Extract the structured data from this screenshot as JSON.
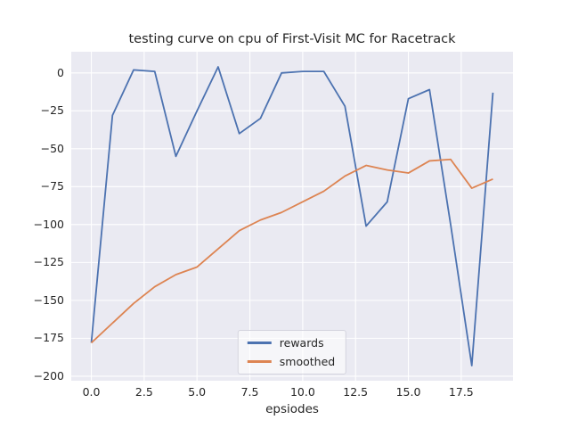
{
  "chart_data": {
    "type": "line",
    "title": "testing curve on cpu of First-Visit MC for Racetrack",
    "xlabel": "epsiodes",
    "ylabel": "",
    "x": [
      0,
      1,
      2,
      3,
      4,
      5,
      6,
      7,
      8,
      9,
      10,
      11,
      12,
      13,
      14,
      15,
      16,
      17,
      18,
      19
    ],
    "series": [
      {
        "name": "rewards",
        "color": "#4c72b0",
        "values": [
          -178,
          -28,
          2,
          1,
          -55,
          -25,
          4,
          -40,
          -30,
          0,
          1,
          1,
          -22,
          -101,
          -85,
          -17,
          -11,
          -100,
          -193,
          -13
        ]
      },
      {
        "name": "smoothed",
        "color": "#dd8452",
        "values": [
          -178,
          -165,
          -152,
          -141,
          -133,
          -128,
          -116,
          -104,
          -97,
          -92,
          -85,
          -78,
          -68,
          -61,
          -64,
          -66,
          -58,
          -57,
          -76,
          -70
        ]
      }
    ],
    "xlim": [
      -0.95,
      19.95
    ],
    "ylim": [
      -203,
      14
    ],
    "xticks": {
      "values": [
        0,
        2.5,
        5,
        7.5,
        10,
        12.5,
        15,
        17.5
      ],
      "labels": [
        "0.0",
        "2.5",
        "5.0",
        "7.5",
        "10.0",
        "12.5",
        "15.0",
        "17.5"
      ]
    },
    "yticks": {
      "values": [
        0,
        -25,
        -50,
        -75,
        -100,
        -125,
        -150,
        -175,
        -200
      ],
      "labels": [
        "0",
        "−25",
        "−50",
        "−75",
        "−100",
        "−125",
        "−150",
        "−175",
        "−200"
      ]
    },
    "grid": true,
    "legend_position": "lower center",
    "plot_bg": "#eaeaf2",
    "grid_color": "#ffffff"
  }
}
